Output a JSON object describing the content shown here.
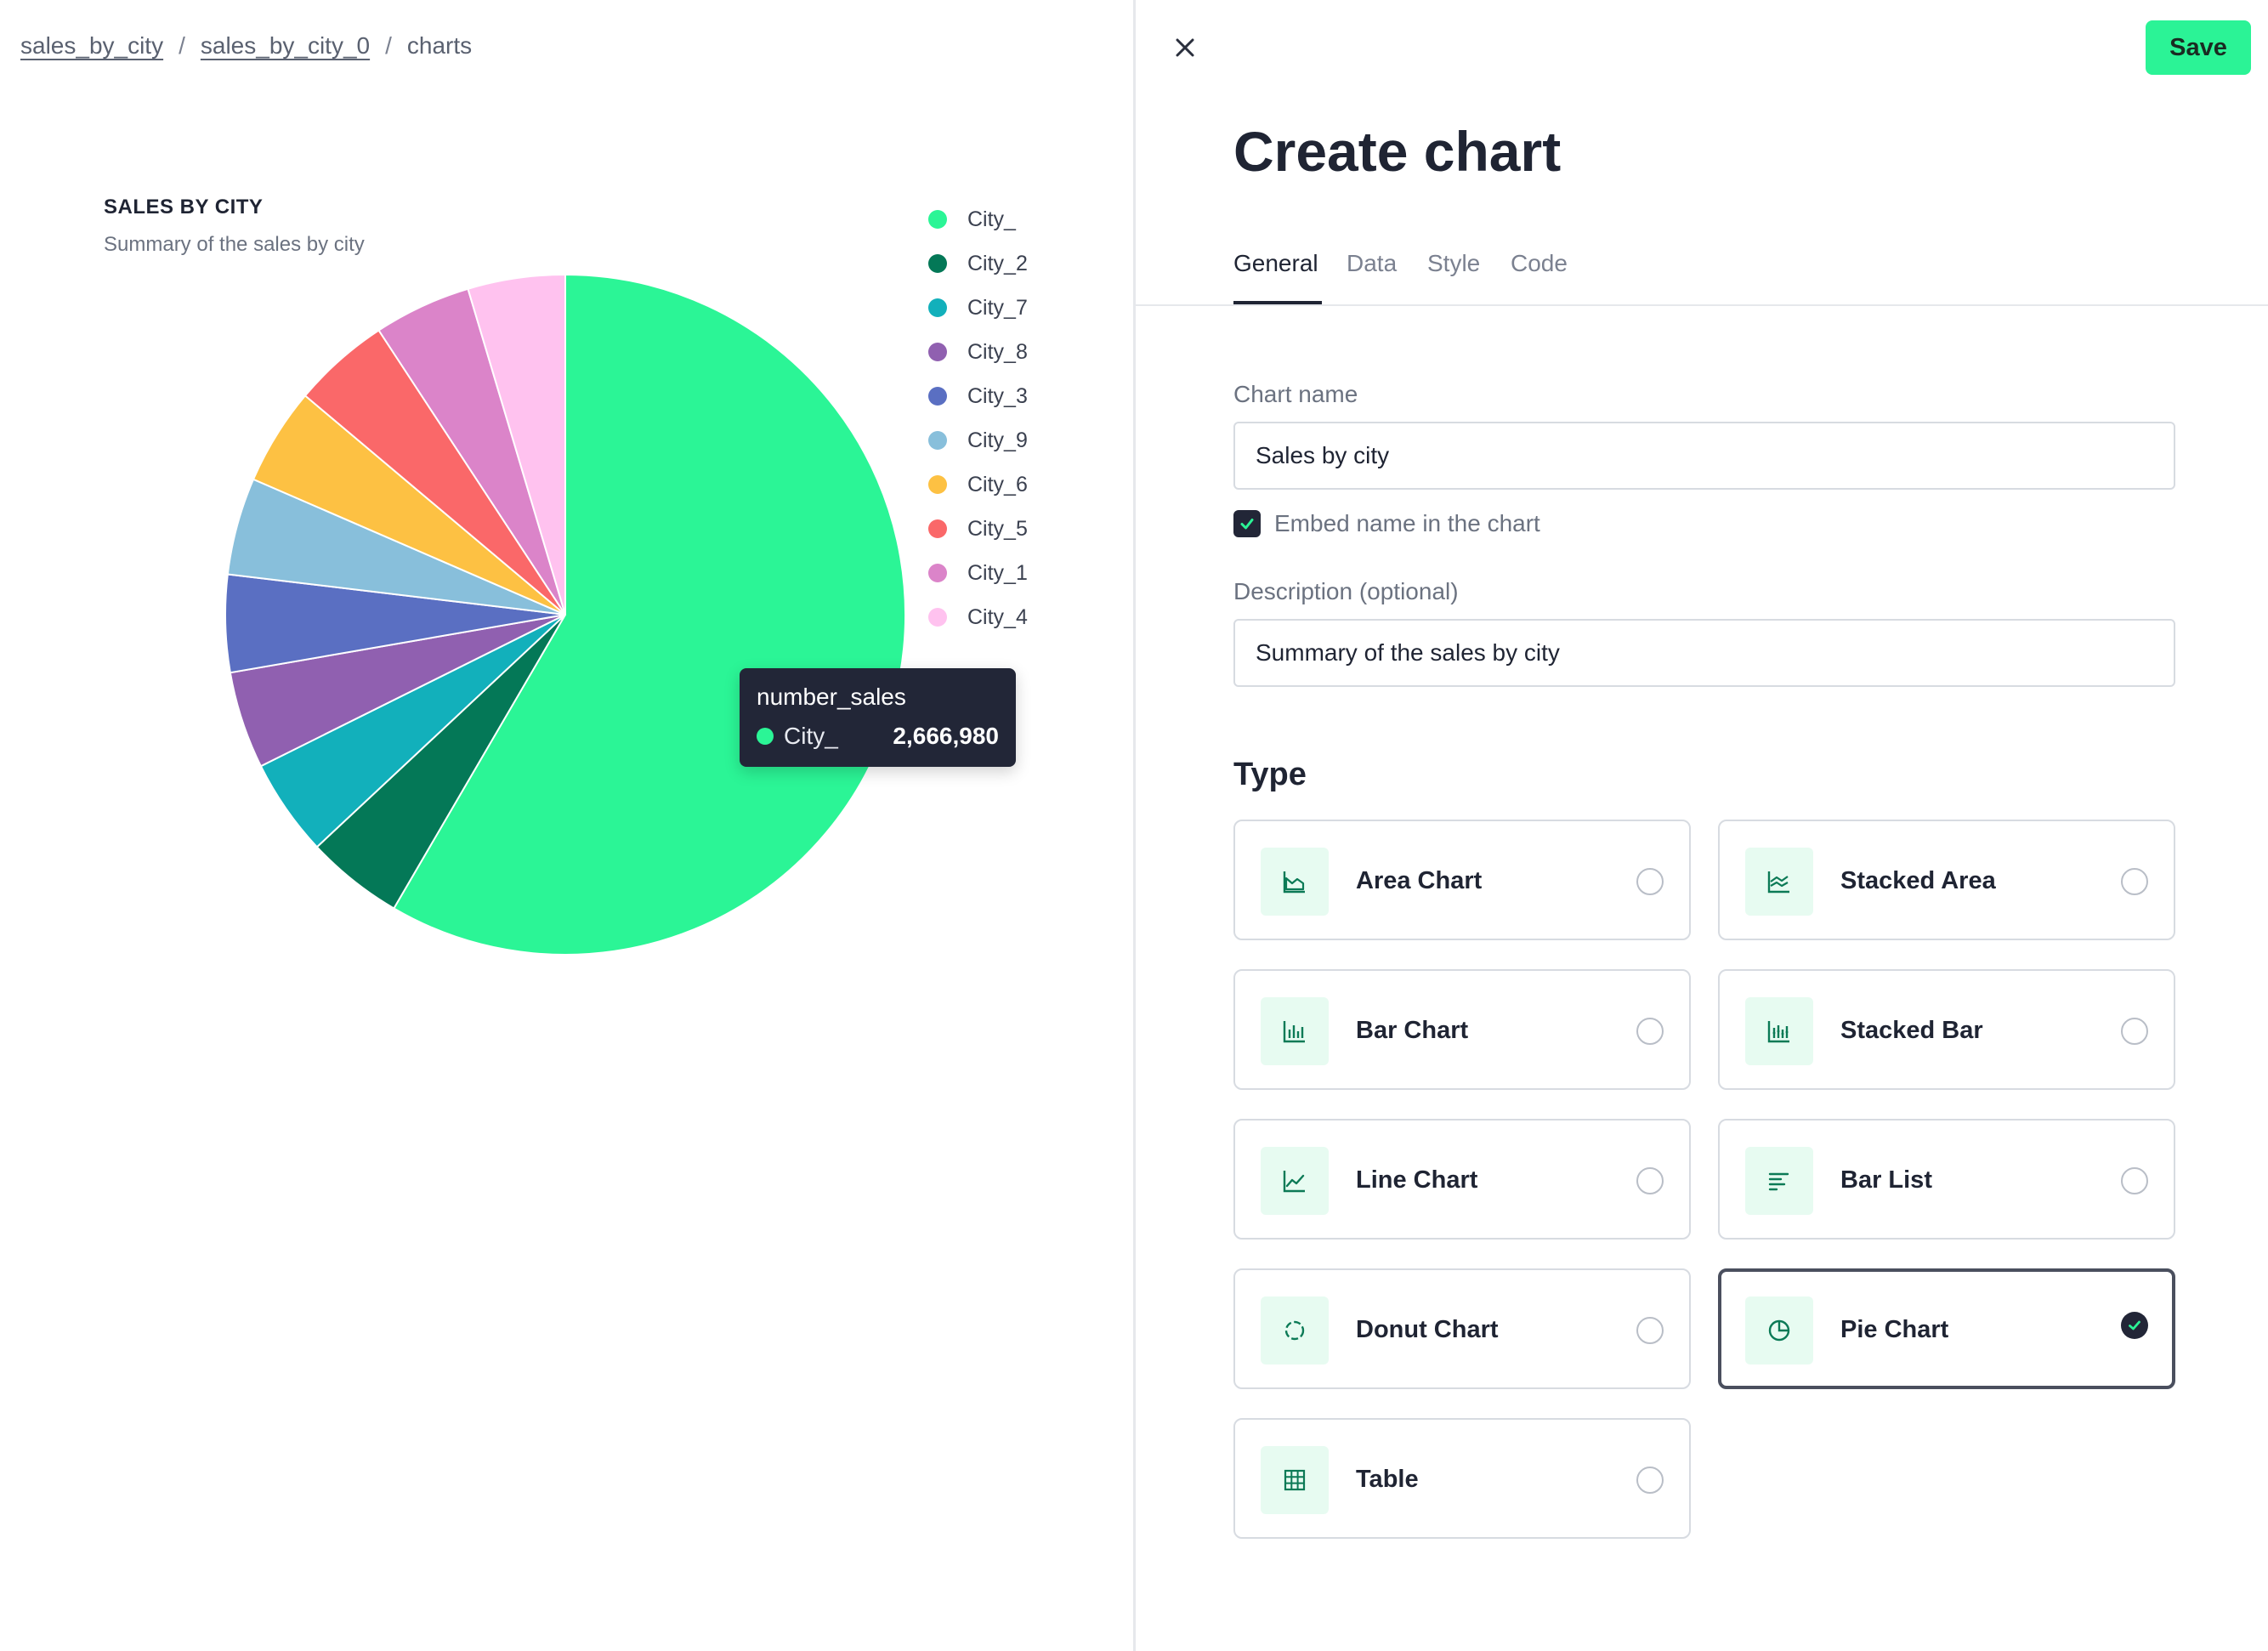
{
  "breadcrumb": {
    "items": [
      "sales_by_city",
      "sales_by_city_0"
    ],
    "current": "charts",
    "separator": "/"
  },
  "chart": {
    "title": "SALES BY CITY",
    "subtitle": "Summary of the sales by city"
  },
  "chart_data": {
    "type": "pie",
    "categories": [
      "City_",
      "City_2",
      "City_7",
      "City_8",
      "City_3",
      "City_9",
      "City_6",
      "City_5",
      "City_1",
      "City_4"
    ],
    "values": [
      2666980,
      211000,
      211000,
      211000,
      211000,
      211000,
      211000,
      211000,
      211000,
      211000
    ],
    "colors": [
      "#2bf596",
      "#047857",
      "#12b0bb",
      "#9060b0",
      "#5a6fc2",
      "#88bfdb",
      "#fdc143",
      "#fa6869",
      "#db84c9",
      "#ffc2ef"
    ],
    "legend": "right",
    "tooltip": {
      "title": "number_sales",
      "label": "City_",
      "value": "2,666,980",
      "color": "#2bf596"
    }
  },
  "panel": {
    "title": "Create chart",
    "save_label": "Save",
    "tabs": [
      {
        "label": "General",
        "active": true
      },
      {
        "label": "Data",
        "active": false
      },
      {
        "label": "Style",
        "active": false
      },
      {
        "label": "Code",
        "active": false
      }
    ],
    "chart_name": {
      "label": "Chart name",
      "value": "Sales by city"
    },
    "embed": {
      "label": "Embed name in the chart",
      "checked": true
    },
    "description": {
      "label": "Description (optional)",
      "value": "Summary of the sales by city"
    },
    "type_heading": "Type",
    "types": [
      {
        "label": "Area Chart",
        "icon": "area-chart-icon",
        "selected": false
      },
      {
        "label": "Stacked Area",
        "icon": "stacked-area-icon",
        "selected": false
      },
      {
        "label": "Bar Chart",
        "icon": "bar-chart-icon",
        "selected": false
      },
      {
        "label": "Stacked Bar",
        "icon": "stacked-bar-icon",
        "selected": false
      },
      {
        "label": "Line Chart",
        "icon": "line-chart-icon",
        "selected": false
      },
      {
        "label": "Bar List",
        "icon": "bar-list-icon",
        "selected": false
      },
      {
        "label": "Donut Chart",
        "icon": "donut-chart-icon",
        "selected": false
      },
      {
        "label": "Pie Chart",
        "icon": "pie-chart-icon",
        "selected": true
      },
      {
        "label": "Table",
        "icon": "table-icon",
        "selected": false
      }
    ]
  }
}
